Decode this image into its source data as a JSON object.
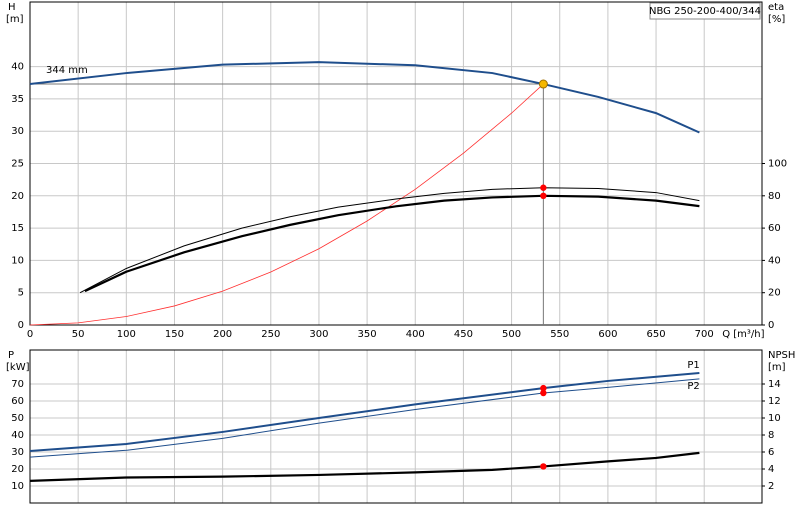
{
  "chart_data": [
    {
      "type": "line",
      "title": "NBG 250-200-400/344",
      "annotation": "344 mm",
      "ylabel": "H",
      "yunit": "[m]",
      "y2label": "eta",
      "y2unit": "[%]",
      "xlabel": "Q [m³/h]",
      "xlim": [
        0,
        760
      ],
      "xticks": [
        0,
        50,
        100,
        150,
        200,
        250,
        300,
        350,
        400,
        450,
        500,
        550,
        600,
        650,
        700
      ],
      "show_xtick_labels": true,
      "ylim": [
        0,
        50
      ],
      "yticks": [
        0,
        5,
        10,
        15,
        20,
        25,
        30,
        35,
        40
      ],
      "y2lim": [
        0,
        200
      ],
      "y2ticks": [
        0,
        20,
        40,
        60,
        80,
        100
      ],
      "grid": true,
      "series": [
        {
          "color": "#1f4e8c",
          "line_width": 2,
          "x": [
            0,
            100,
            200,
            300,
            400,
            480,
            533,
            590,
            650,
            695
          ],
          "values": [
            37.3,
            39,
            40.3,
            40.7,
            40.2,
            39,
            37.3,
            35.3,
            32.8,
            29.8
          ]
        },
        {
          "color": "#ff3030",
          "line_width": 0.8,
          "x": [
            0,
            50,
            100,
            150,
            200,
            250,
            300,
            350,
            400,
            450,
            500,
            533
          ],
          "values": [
            0,
            0.33,
            1.31,
            2.95,
            5.25,
            8.2,
            11.8,
            16.1,
            21,
            26.6,
            32.8,
            37.3
          ]
        },
        {
          "color": "#000000",
          "line_width": 1,
          "axis": "y2",
          "x": [
            52,
            100,
            160,
            220,
            270,
            320,
            380,
            430,
            480,
            533,
            590,
            650,
            695
          ],
          "values": [
            20,
            35,
            49,
            60,
            67,
            73,
            78,
            81.5,
            84,
            85,
            84.5,
            82,
            77
          ]
        },
        {
          "color": "#000000",
          "line_width": 2.2,
          "axis": "y2",
          "x": [
            57,
            100,
            160,
            220,
            270,
            320,
            380,
            430,
            480,
            533,
            590,
            650,
            695
          ],
          "values": [
            21,
            33,
            45,
            55,
            62,
            68,
            73.5,
            77,
            79,
            80,
            79.5,
            77,
            73.6
          ]
        }
      ],
      "operating_point": {
        "x": 533,
        "y": 37.3,
        "color": "#f5b800"
      },
      "markers": [
        {
          "x": 533,
          "y": 85,
          "axis": "y2"
        },
        {
          "x": 533,
          "y": 80,
          "axis": "y2"
        }
      ],
      "marker_color": "#ff0000"
    },
    {
      "type": "line",
      "ylabel": "P",
      "yunit": "[kW]",
      "y2label": "NPSH",
      "y2unit": "[m]",
      "xlim": [
        0,
        760
      ],
      "xticks": [
        0,
        50,
        100,
        150,
        200,
        250,
        300,
        350,
        400,
        450,
        500,
        550,
        600,
        650,
        700
      ],
      "show_xtick_labels": false,
      "ylim": [
        0,
        90
      ],
      "yticks": [
        10,
        20,
        30,
        40,
        50,
        60,
        70
      ],
      "y2lim": [
        0,
        18
      ],
      "y2ticks": [
        2,
        4,
        6,
        8,
        10,
        12,
        14
      ],
      "grid": true,
      "series": [
        {
          "name": "P1",
          "color": "#1f4e8c",
          "line_width": 2,
          "x": [
            0,
            100,
            200,
            300,
            400,
            533,
            600,
            695
          ],
          "values": [
            30.6,
            34.7,
            41.8,
            50,
            58,
            67.6,
            71.8,
            76.5
          ]
        },
        {
          "name": "P2",
          "color": "#1f4e8c",
          "line_width": 1,
          "x": [
            0,
            100,
            200,
            300,
            400,
            533,
            600,
            695
          ],
          "values": [
            27,
            31,
            38,
            47,
            55,
            64.7,
            68,
            73
          ]
        },
        {
          "color": "#000000",
          "line_width": 2.2,
          "axis": "y2",
          "x": [
            0,
            100,
            200,
            300,
            400,
            480,
            533,
            600,
            650,
            695
          ],
          "values": [
            2.6,
            3.0,
            3.1,
            3.3,
            3.6,
            3.9,
            4.3,
            4.9,
            5.3,
            5.9
          ]
        }
      ],
      "markers": [
        {
          "x": 533,
          "y": 67.6
        },
        {
          "x": 533,
          "y": 64.7
        },
        {
          "x": 533,
          "y": 4.3,
          "axis": "y2"
        }
      ],
      "marker_color": "#ff0000"
    }
  ]
}
